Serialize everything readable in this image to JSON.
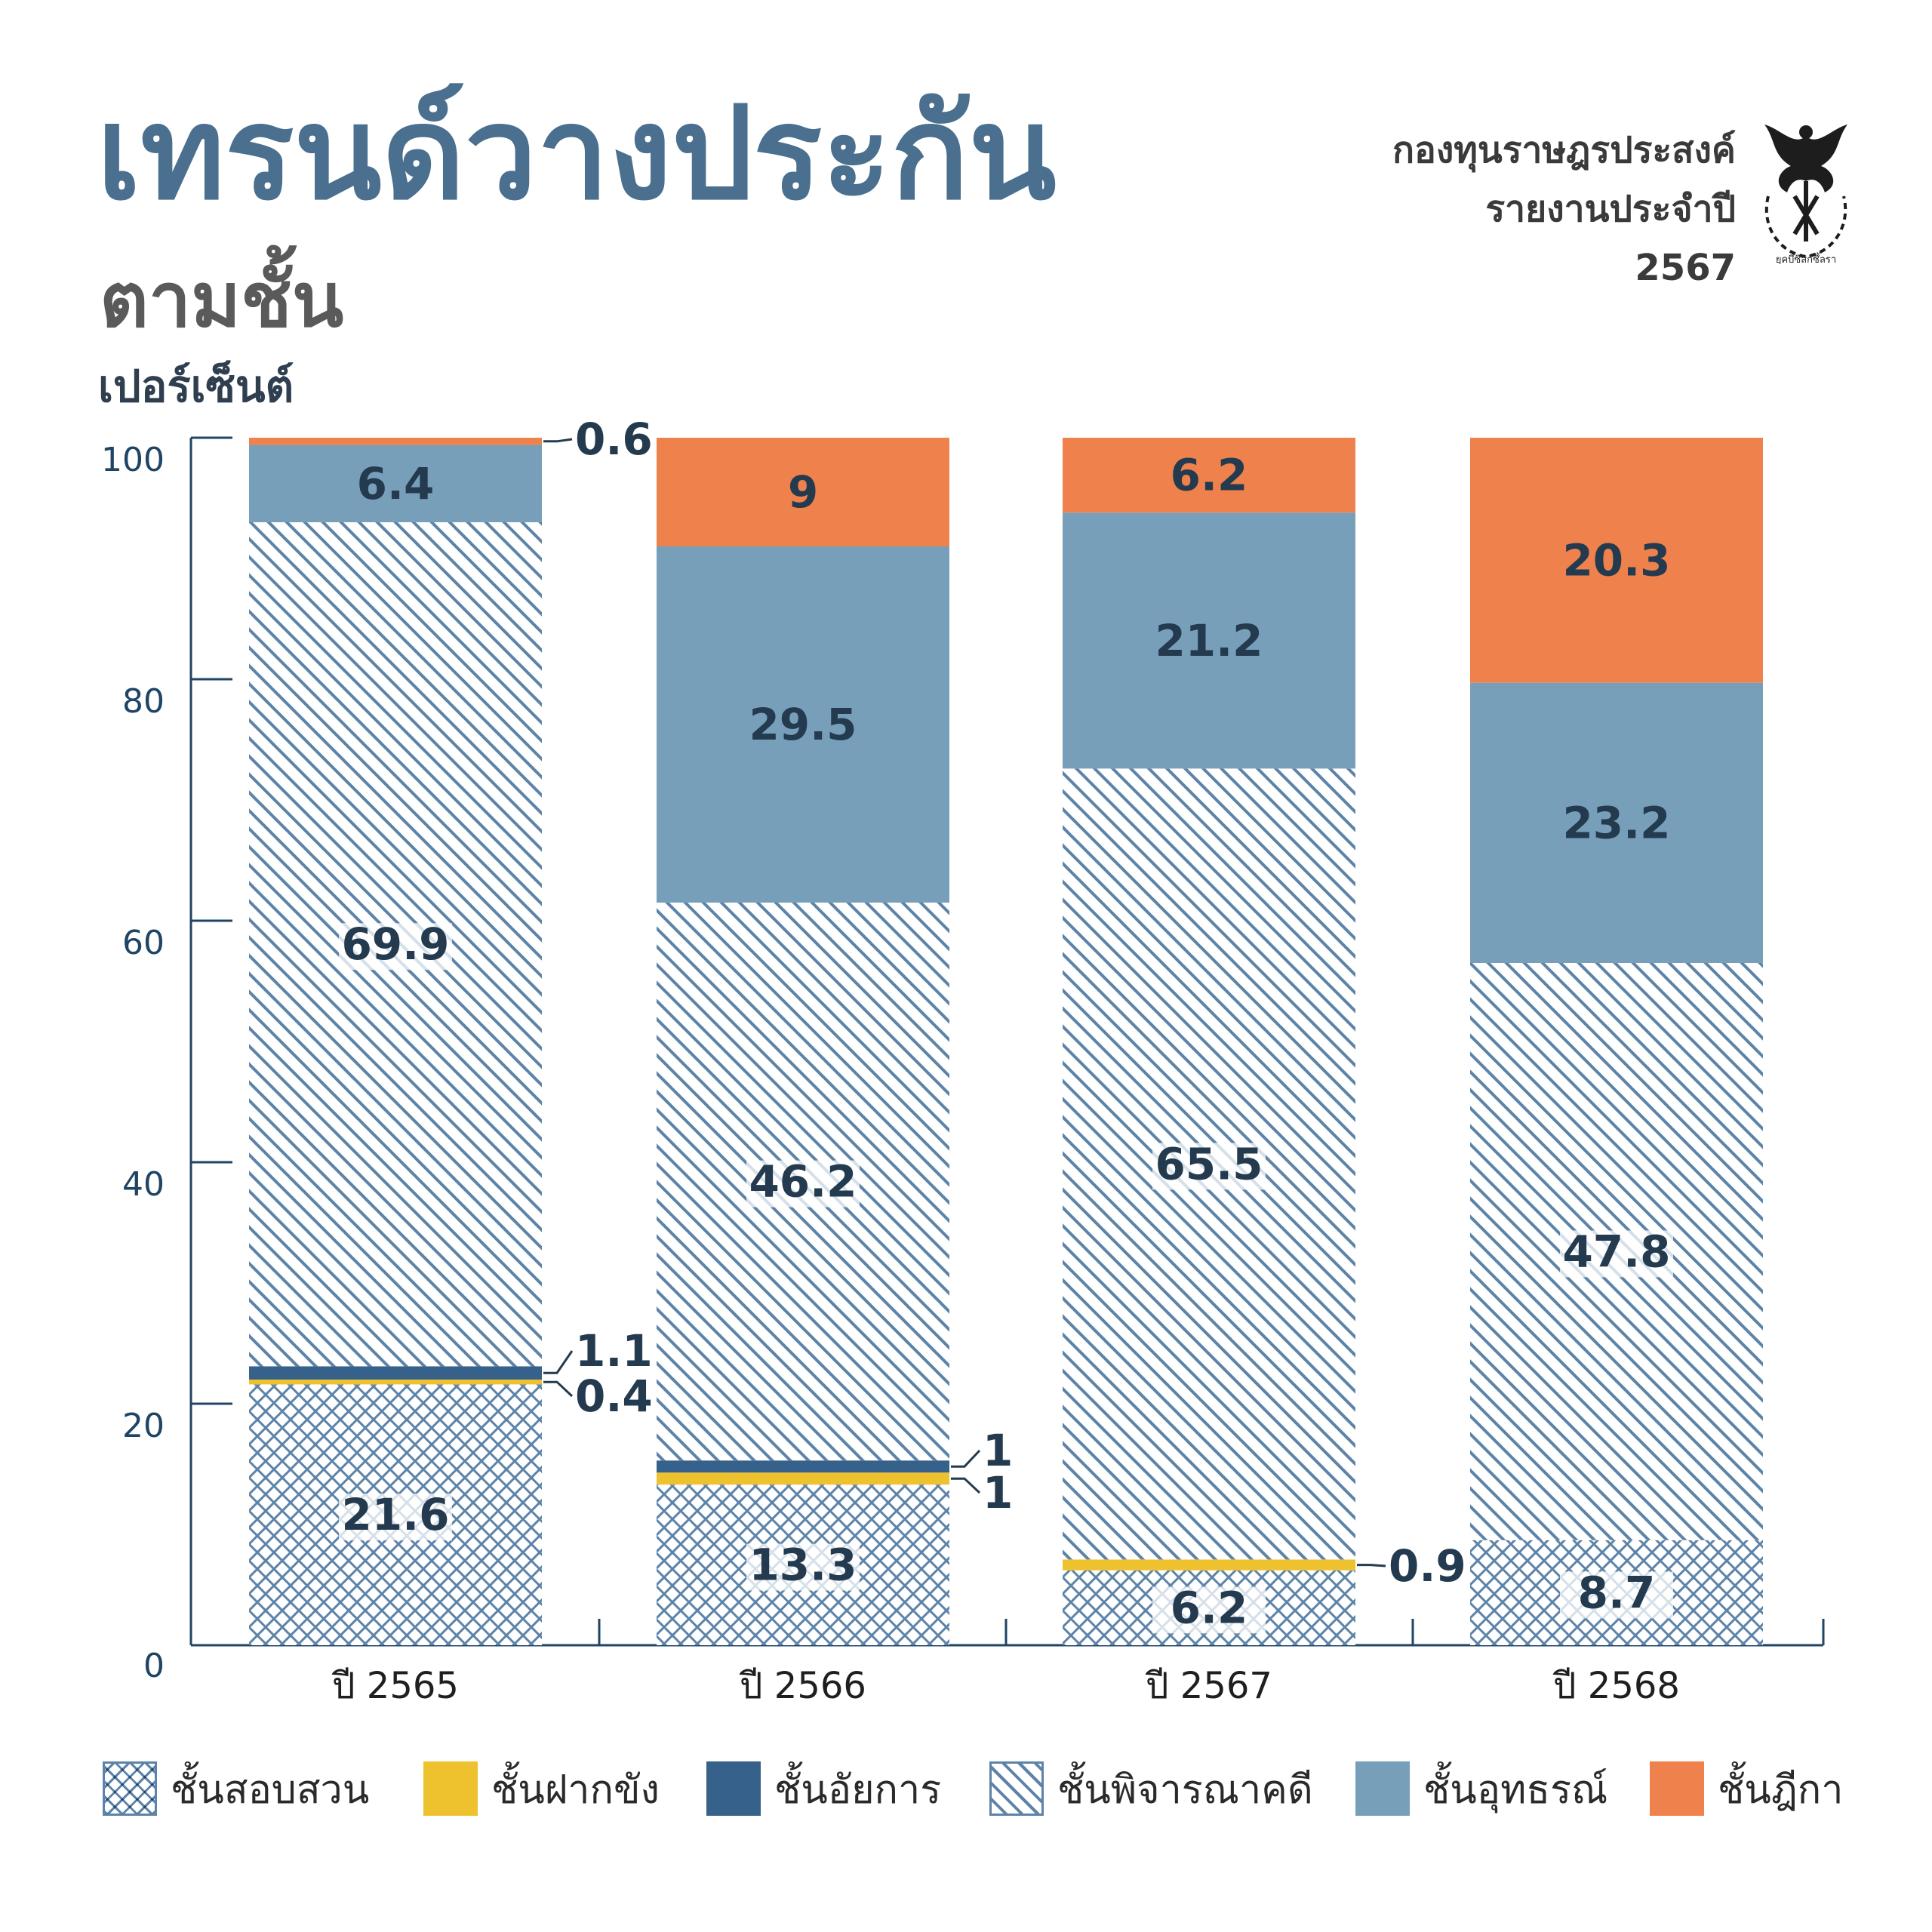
{
  "header": {
    "title": "เทรนด์วางประกัน",
    "subtitle": "ตามชั้น",
    "unit_label": "เปอร์เซ็นต์",
    "org_lines": [
      "กองทุนราษฎรประสงค์",
      "รายงานประจำปี",
      "2567"
    ],
    "logo_caption": "ยุคบึ้ซึสกัซึ้ลรา"
  },
  "colors": {
    "investigation": "#5d84a8",
    "detention": "#eec22e",
    "prosecution": "#36618a",
    "trial": "#5d84a8",
    "appeal": "#789fba",
    "supreme": "#ee814c",
    "axis": "#1f4464",
    "label_dark": "#233a4f"
  },
  "chart_data": {
    "type": "bar",
    "stacked": true,
    "categories": [
      "ปี 2565",
      "ปี 2566",
      "ปี 2567",
      "ปี 2568"
    ],
    "ylim": [
      0,
      100
    ],
    "yticks": [
      0,
      20,
      40,
      60,
      80,
      100
    ],
    "ylabel": "เปอร์เซ็นต์",
    "grid": false,
    "legend_position": "bottom",
    "series": [
      {
        "name": "ชั้นสอบสวน",
        "pattern": "crosshatch",
        "color_key": "investigation",
        "values": [
          21.6,
          13.3,
          6.2,
          8.7
        ],
        "labels": [
          "21.6",
          "13.3",
          "6.2",
          "8.7"
        ]
      },
      {
        "name": "ชั้นฝากขัง",
        "pattern": "solid",
        "color_key": "detention",
        "values": [
          0.4,
          1,
          0.9,
          0
        ],
        "labels": [
          "0.4",
          "1",
          "0.9",
          ""
        ]
      },
      {
        "name": "ชั้นอัยการ",
        "pattern": "solid",
        "color_key": "prosecution",
        "values": [
          1.1,
          1,
          0,
          0
        ],
        "labels": [
          "1.1",
          "1",
          "",
          ""
        ]
      },
      {
        "name": "ชั้นพิจารณาคดี",
        "pattern": "diagonal",
        "color_key": "trial",
        "values": [
          69.9,
          46.2,
          65.5,
          47.8
        ],
        "labels": [
          "69.9",
          "46.2",
          "65.5",
          "47.8"
        ]
      },
      {
        "name": "ชั้นอุทธรณ์",
        "pattern": "solid",
        "color_key": "appeal",
        "values": [
          6.4,
          29.5,
          21.2,
          23.2
        ],
        "labels": [
          "6.4",
          "29.5",
          "21.2",
          "23.2"
        ]
      },
      {
        "name": "ชั้นฎีกา",
        "pattern": "solid",
        "color_key": "supreme",
        "values": [
          0.6,
          9,
          6.2,
          20.3
        ],
        "labels": [
          "0.6",
          "9",
          "6.2",
          "20.3"
        ]
      }
    ]
  }
}
